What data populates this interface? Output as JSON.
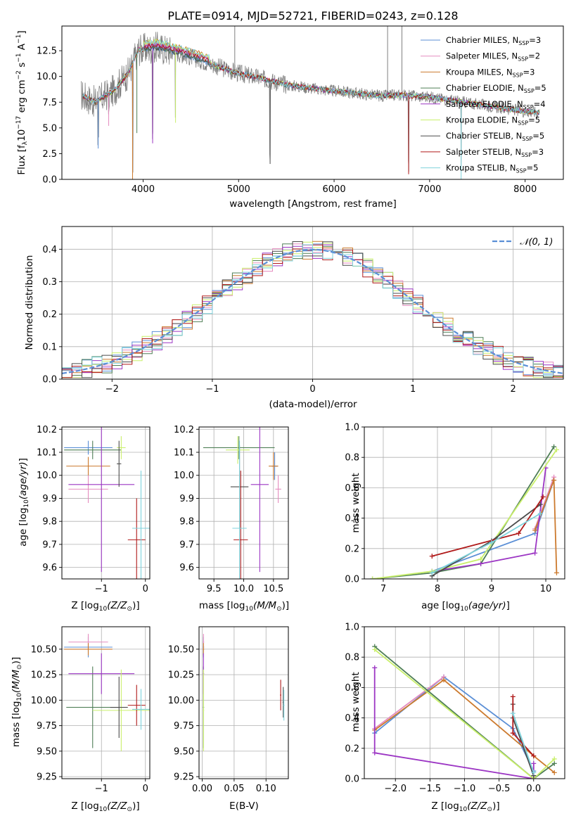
{
  "figure": {
    "title": "PLATE=0914, MJD=52721, FIBERID=0243, z=0.128"
  },
  "colors": {
    "Chabrier MILES": "#5b8fd6",
    "Salpeter MILES": "#e58bbf",
    "Kroupa MILES": "#cc7a2e",
    "Chabrier ELODIE": "#4f7f56",
    "Salpeter ELODIE": "#9c36c4",
    "Kroupa ELODIE": "#c9ef6b",
    "Chabrier STELIB": "#4b4b4b",
    "Salpeter STELIB": "#b01a1a",
    "Kroupa STELIB": "#7fd3dc",
    "data": "#808080"
  },
  "chart_data": [
    {
      "id": "spectrum",
      "type": "line",
      "title": "PLATE=0914, MJD=52721, FIBERID=0243, z=0.128",
      "xlabel": "wavelength [Angstrom, rest frame]",
      "ylabel": "Flux [f",
      "xlim": [
        3150,
        8400
      ],
      "ylim": [
        0,
        14.9
      ],
      "xticks": [
        "4000",
        "5000",
        "6000",
        "7000",
        "8000"
      ],
      "yticks": [
        "0.0",
        "2.5",
        "5.0",
        "7.5",
        "10.0",
        "12.5"
      ],
      "grid": false,
      "legend_position": "upper right",
      "legend": [
        {
          "model": "Chabrier MILES",
          "nssp": "3"
        },
        {
          "model": "Salpeter MILES",
          "nssp": "2"
        },
        {
          "model": "Kroupa MILES",
          "nssp": "3"
        },
        {
          "model": "Chabrier ELODIE",
          "nssp": "5"
        },
        {
          "model": "Salpeter ELODIE",
          "nssp": "4"
        },
        {
          "model": "Kroupa ELODIE",
          "nssp": "5"
        },
        {
          "model": "Chabrier STELIB",
          "nssp": "5"
        },
        {
          "model": "Salpeter STELIB",
          "nssp": "3"
        },
        {
          "model": "Kroupa STELIB",
          "nssp": "5"
        }
      ],
      "continuum_points": [
        [
          3350,
          8.2
        ],
        [
          3500,
          7.5
        ],
        [
          3700,
          8.7
        ],
        [
          3850,
          10.4
        ],
        [
          3950,
          12.6
        ],
        [
          4150,
          12.8
        ],
        [
          4400,
          12.2
        ],
        [
          4600,
          11.6
        ],
        [
          4800,
          10.9
        ],
        [
          5000,
          10.3
        ],
        [
          5200,
          9.9
        ],
        [
          5500,
          9.2
        ],
        [
          5800,
          8.8
        ],
        [
          6000,
          8.6
        ],
        [
          6200,
          8.4
        ],
        [
          6500,
          8.1
        ],
        [
          6700,
          8.2
        ],
        [
          7000,
          8.0
        ],
        [
          7500,
          7.3
        ],
        [
          8000,
          6.6
        ],
        [
          8150,
          6.5
        ]
      ],
      "absorption_features": [
        {
          "x": 3530,
          "min": 3.0
        },
        {
          "x": 3640,
          "min": 5.2
        },
        {
          "x": 3890,
          "min": 0.0
        },
        {
          "x": 3935,
          "min": 4.5
        },
        {
          "x": 4100,
          "min": 3.5
        },
        {
          "x": 4340,
          "min": 5.5
        },
        {
          "x": 5330,
          "min": 1.5
        },
        {
          "x": 6780,
          "min": 0.5
        },
        {
          "x": 7330,
          "min": 0.0
        }
      ],
      "emission_features": [
        {
          "x": 4960,
          "max": 14.9
        },
        {
          "x": 6560,
          "max": 14.9
        },
        {
          "x": 6710,
          "max": 14.9
        }
      ]
    },
    {
      "id": "residuals",
      "type": "line",
      "xlabel": "(data-model)/error",
      "ylabel": "Normed distribution",
      "xlim": [
        -2.5,
        2.5
      ],
      "ylim": [
        0,
        0.47
      ],
      "xticks": [
        "−2",
        "−1",
        "0",
        "1",
        "2"
      ],
      "yticks": [
        "0.0",
        "0.1",
        "0.2",
        "0.3",
        "0.4"
      ],
      "grid": true,
      "legend_position": "upper right",
      "legend": [
        {
          "label": "𝒩(0, 1)"
        }
      ],
      "reference_curve": {
        "type": "gaussian",
        "mean": 0,
        "sigma": 1,
        "color": "#5b8fd6"
      },
      "histogram_bin_width": 0.1
    },
    {
      "id": "age_vs_Z",
      "type": "scatter",
      "xlabel": "Z [log",
      "ylabel": "age  [log",
      "xlim": [
        -1.9,
        0.1
      ],
      "ylim": [
        9.55,
        10.21
      ],
      "xticks": [
        "−1",
        "0"
      ],
      "yticks": [
        "9.6",
        "9.7",
        "9.8",
        "9.9",
        "10.0",
        "10.1",
        "10.2"
      ],
      "grid": true,
      "points": [
        {
          "model": "Chabrier MILES",
          "x": -1.3,
          "y": 10.12,
          "xerr": 0.55,
          "yerr": 0.03
        },
        {
          "model": "Salpeter MILES",
          "x": -1.3,
          "y": 9.94,
          "xerr": 0.45,
          "yerr": 0.06
        },
        {
          "model": "Kroupa MILES",
          "x": -1.3,
          "y": 10.04,
          "xerr": 0.5,
          "yerr": 0.04
        },
        {
          "model": "Chabrier ELODIE",
          "x": -1.2,
          "y": 10.11,
          "xerr": 0.65,
          "yerr": 0.04
        },
        {
          "model": "Salpeter ELODIE",
          "x": -1.0,
          "y": 9.96,
          "xerr": 0.75,
          "yerr": 0.38
        },
        {
          "model": "Kroupa ELODIE",
          "x": -0.55,
          "y": 10.12,
          "xerr": 0.1,
          "yerr": 0.05
        },
        {
          "model": "Chabrier STELIB",
          "x": -0.6,
          "y": 10.05,
          "xerr": 0.05,
          "yerr": 0.1
        },
        {
          "model": "Salpeter STELIB",
          "x": -0.2,
          "y": 9.72,
          "xerr": 0.2,
          "yerr": 0.18
        },
        {
          "model": "Kroupa STELIB",
          "x": -0.1,
          "y": 9.77,
          "xerr": 0.2,
          "yerr": 0.25
        }
      ]
    },
    {
      "id": "age_vs_mass",
      "type": "scatter",
      "xlabel": "mass [log",
      "ylabel": "",
      "xlim": [
        9.25,
        10.75
      ],
      "ylim": [
        9.55,
        10.21
      ],
      "xticks": [
        "9.5",
        "10.0",
        "10.5"
      ],
      "yticks": [
        "9.6",
        "9.7",
        "9.8",
        "9.9",
        "10.0",
        "10.1",
        "10.2"
      ],
      "grid": true,
      "points": [
        {
          "model": "Chabrier MILES",
          "x": 10.52,
          "y": 10.04,
          "xerr": 0.05,
          "yerr": 0.06
        },
        {
          "model": "Salpeter MILES",
          "x": 10.58,
          "y": 9.94,
          "xerr": 0.05,
          "yerr": 0.06
        },
        {
          "model": "Kroupa MILES",
          "x": 10.5,
          "y": 10.04,
          "xerr": 0.08,
          "yerr": 0.06
        },
        {
          "model": "Chabrier ELODIE",
          "x": 9.92,
          "y": 10.12,
          "xerr": 0.6,
          "yerr": 0.05
        },
        {
          "model": "Salpeter ELODIE",
          "x": 10.27,
          "y": 9.96,
          "xerr": 0.15,
          "yerr": 0.38
        },
        {
          "model": "Kroupa ELODIE",
          "x": 9.9,
          "y": 10.11,
          "xerr": 0.2,
          "yerr": 0.06
        },
        {
          "model": "Chabrier STELIB",
          "x": 9.93,
          "y": 9.95,
          "xerr": 0.15,
          "yerr": 0.18
        },
        {
          "model": "Salpeter STELIB",
          "x": 9.95,
          "y": 9.72,
          "xerr": 0.12,
          "yerr": 0.3
        },
        {
          "model": "Kroupa STELIB",
          "x": 9.93,
          "y": 9.77,
          "xerr": 0.12,
          "yerr": 0.38
        }
      ]
    },
    {
      "id": "weight_vs_age",
      "type": "line",
      "xlabel": "age  [log",
      "ylabel": "mass weight",
      "xlim": [
        6.65,
        10.35
      ],
      "ylim": [
        0,
        1.0
      ],
      "xticks": [
        "7",
        "8",
        "9",
        "10"
      ],
      "yticks": [
        "0.0",
        "0.2",
        "0.4",
        "0.6",
        "0.8",
        "1.0"
      ],
      "grid": true,
      "series": [
        {
          "model": "Chabrier MILES",
          "x": [
            7.9,
            9.8,
            10.15
          ],
          "y": [
            0.05,
            0.3,
            0.65
          ]
        },
        {
          "model": "Salpeter MILES",
          "x": [
            9.8,
            10.15
          ],
          "y": [
            0.33,
            0.67
          ]
        },
        {
          "model": "Kroupa MILES",
          "x": [
            9.8,
            10.15,
            10.2
          ],
          "y": [
            0.32,
            0.65,
            0.04
          ]
        },
        {
          "model": "Chabrier ELODIE",
          "x": [
            6.8,
            7.9,
            8.8,
            10.15
          ],
          "y": [
            0.0,
            0.04,
            0.1,
            0.87
          ]
        },
        {
          "model": "Salpeter ELODIE",
          "x": [
            7.9,
            8.8,
            9.8,
            10.0
          ],
          "y": [
            0.05,
            0.1,
            0.17,
            0.73
          ]
        },
        {
          "model": "Kroupa ELODIE",
          "x": [
            6.8,
            7.9,
            8.8,
            10.2
          ],
          "y": [
            0.0,
            0.05,
            0.13,
            0.85
          ]
        },
        {
          "model": "Chabrier STELIB",
          "x": [
            7.9,
            9.0,
            9.9
          ],
          "y": [
            0.02,
            0.25,
            0.49
          ]
        },
        {
          "model": "Salpeter STELIB",
          "x": [
            7.9,
            9.5,
            9.95
          ],
          "y": [
            0.15,
            0.3,
            0.54
          ]
        },
        {
          "model": "Kroupa STELIB",
          "x": [
            7.9,
            9.0,
            9.9
          ],
          "y": [
            0.04,
            0.24,
            0.43
          ]
        }
      ]
    },
    {
      "id": "mass_vs_Z",
      "type": "scatter",
      "xlabel": "Z [log",
      "ylabel": "mass [log",
      "xlim": [
        -1.9,
        0.1
      ],
      "ylim": [
        9.23,
        10.72
      ],
      "xticks": [
        "−1",
        "0"
      ],
      "yticks": [
        "9.25",
        "9.50",
        "9.75",
        "10.00",
        "10.25",
        "10.50"
      ],
      "grid": true,
      "points": [
        {
          "model": "Chabrier MILES",
          "x": -1.3,
          "y": 10.52,
          "xerr": 0.55,
          "yerr": 0.1
        },
        {
          "model": "Salpeter MILES",
          "x": -1.3,
          "y": 10.57,
          "xerr": 0.45,
          "yerr": 0.08
        },
        {
          "model": "Kroupa MILES",
          "x": -1.3,
          "y": 10.5,
          "xerr": 0.55,
          "yerr": 0.06
        },
        {
          "model": "Chabrier ELODIE",
          "x": -1.2,
          "y": 9.93,
          "xerr": 0.6,
          "yerr": 0.4
        },
        {
          "model": "Salpeter ELODIE",
          "x": -1.0,
          "y": 10.26,
          "xerr": 0.75,
          "yerr": 0.2
        },
        {
          "model": "Kroupa ELODIE",
          "x": -0.55,
          "y": 9.9,
          "xerr": 0.65,
          "yerr": 0.4
        },
        {
          "model": "Chabrier STELIB",
          "x": -0.6,
          "y": 9.93,
          "xerr": 0.2,
          "yerr": 0.3
        },
        {
          "model": "Salpeter STELIB",
          "x": -0.2,
          "y": 9.95,
          "xerr": 0.2,
          "yerr": 0.2
        },
        {
          "model": "Kroupa STELIB",
          "x": -0.1,
          "y": 9.91,
          "xerr": 0.2,
          "yerr": 0.2
        }
      ]
    },
    {
      "id": "mass_vs_ebv",
      "type": "scatter",
      "xlabel": "E(B-V)",
      "ylabel": "",
      "xlim": [
        -0.005,
        0.135
      ],
      "ylim": [
        9.23,
        10.72
      ],
      "xticks": [
        "0.00",
        "0.05",
        "0.10"
      ],
      "yticks": [
        "9.25",
        "9.50",
        "9.75",
        "10.00",
        "10.25",
        "10.50"
      ],
      "grid": true,
      "points": [
        {
          "model": "Chabrier MILES",
          "x": 0.002,
          "y": 10.52,
          "xerr": 0.001,
          "yerr": 0.1
        },
        {
          "model": "Salpeter MILES",
          "x": 0.002,
          "y": 10.57,
          "xerr": 0.001,
          "yerr": 0.08
        },
        {
          "model": "Kroupa MILES",
          "x": 0.002,
          "y": 10.5,
          "xerr": 0.001,
          "yerr": 0.06
        },
        {
          "model": "Chabrier ELODIE",
          "x": 0.002,
          "y": 9.93,
          "xerr": 0.001,
          "yerr": 0.4
        },
        {
          "model": "Salpeter ELODIE",
          "x": 0.002,
          "y": 10.26,
          "xerr": 0.001,
          "yerr": 0.2
        },
        {
          "model": "Kroupa ELODIE",
          "x": 0.002,
          "y": 9.9,
          "xerr": 0.001,
          "yerr": 0.4
        },
        {
          "model": "Chabrier STELIB",
          "x": 0.127,
          "y": 9.98,
          "xerr": 0.001,
          "yerr": 0.15
        },
        {
          "model": "Salpeter STELIB",
          "x": 0.123,
          "y": 10.05,
          "xerr": 0.001,
          "yerr": 0.15
        },
        {
          "model": "Kroupa STELIB",
          "x": 0.128,
          "y": 9.95,
          "xerr": 0.001,
          "yerr": 0.15
        }
      ]
    },
    {
      "id": "weight_vs_Z",
      "type": "line",
      "xlabel": "Z [log",
      "ylabel": "mass weight",
      "xlim": [
        -2.45,
        0.45
      ],
      "ylim": [
        0,
        1.0
      ],
      "xticks": [
        "−2.0",
        "−1.5",
        "−1.0",
        "−0.5",
        "0.0"
      ],
      "yticks": [
        "0.0",
        "0.2",
        "0.4",
        "0.6",
        "0.8",
        "1.0"
      ],
      "grid": true,
      "series": [
        {
          "model": "Chabrier MILES",
          "x": [
            -2.3,
            -1.3,
            -0.3,
            0.0
          ],
          "y": [
            0.3,
            0.67,
            0.33,
            0.05
          ]
        },
        {
          "model": "Salpeter MILES",
          "x": [
            -2.3,
            -1.3
          ],
          "y": [
            0.33,
            0.67
          ]
        },
        {
          "model": "Kroupa MILES",
          "x": [
            -2.3,
            -1.3,
            0.0,
            0.3
          ],
          "y": [
            0.32,
            0.65,
            0.15,
            0.04
          ]
        },
        {
          "model": "Chabrier ELODIE",
          "x": [
            -2.3,
            0.0,
            0.3
          ],
          "y": [
            0.87,
            0.0,
            0.1
          ]
        },
        {
          "model": "Salpeter ELODIE",
          "x": [
            -2.3,
            -2.3,
            0.0,
            0.0
          ],
          "y": [
            0.73,
            0.17,
            0.0,
            0.1
          ]
        },
        {
          "model": "Kroupa ELODIE",
          "x": [
            -2.3,
            0.0,
            0.3
          ],
          "y": [
            0.85,
            0.0,
            0.13
          ]
        },
        {
          "model": "Chabrier STELIB",
          "x": [
            -0.3,
            -0.3,
            0.0
          ],
          "y": [
            0.49,
            0.4,
            0.02
          ]
        },
        {
          "model": "Salpeter STELIB",
          "x": [
            -0.3,
            -0.3,
            0.0
          ],
          "y": [
            0.54,
            0.3,
            0.15
          ]
        },
        {
          "model": "Kroupa STELIB",
          "x": [
            -0.3,
            0.0
          ],
          "y": [
            0.43,
            0.04
          ]
        }
      ]
    }
  ]
}
